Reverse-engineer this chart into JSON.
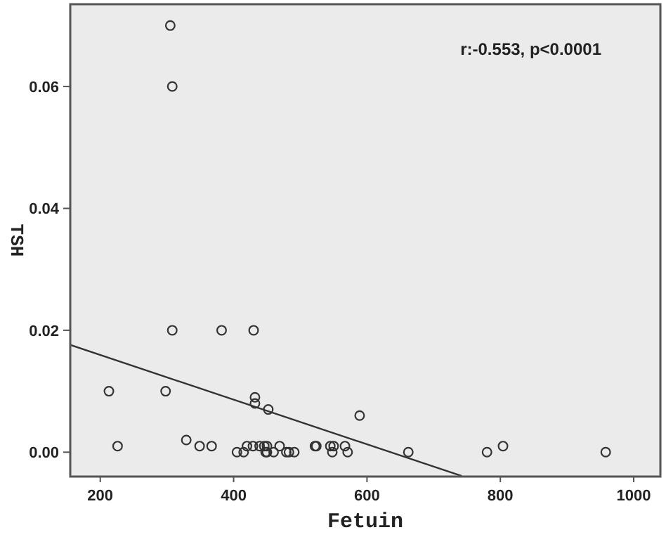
{
  "chart_data": {
    "type": "scatter",
    "xlabel": "Fetuin",
    "ylabel": "TSH",
    "xlim": [
      155,
      1040
    ],
    "ylim": [
      -0.004,
      0.0735
    ],
    "xticks": [
      200,
      400,
      600,
      800,
      1000
    ],
    "yticks": [
      {
        "value": 0,
        "label": "0.00"
      },
      {
        "value": 0.02,
        "label": "0.02"
      },
      {
        "value": 0.04,
        "label": "0.04"
      },
      {
        "value": 0.06,
        "label": "0.06"
      }
    ],
    "grid": false,
    "marker": "circle",
    "annotations": [
      "r:-0.553, p<0.0001"
    ],
    "series": [
      {
        "color": "#333333",
        "x": [
          305,
          308,
          308,
          382,
          430,
          213,
          298,
          432,
          432,
          452,
          589,
          329,
          226,
          349,
          367,
          420,
          429,
          439,
          446,
          450,
          469,
          522,
          524,
          545,
          550,
          567,
          804,
          405,
          415,
          448,
          450,
          460,
          479,
          483,
          491,
          548,
          571,
          662,
          780,
          958
        ],
        "values": [
          0.07,
          0.06,
          0.02,
          0.02,
          0.02,
          0.01,
          0.01,
          0.009,
          0.008,
          0.007,
          0.006,
          0.002,
          0.001,
          0.001,
          0.001,
          0.001,
          0.001,
          0.001,
          0.001,
          0.001,
          0.001,
          0.001,
          0.001,
          0.001,
          0.001,
          0.001,
          0.001,
          0,
          0,
          0,
          0,
          0,
          0,
          0,
          0,
          0,
          0,
          0,
          0,
          0
        ]
      },
      {
        "type": "line",
        "color": "#333333",
        "marker": "none",
        "x": [
          155,
          742
        ],
        "values": [
          0.0176,
          -0.0039
        ]
      }
    ]
  }
}
